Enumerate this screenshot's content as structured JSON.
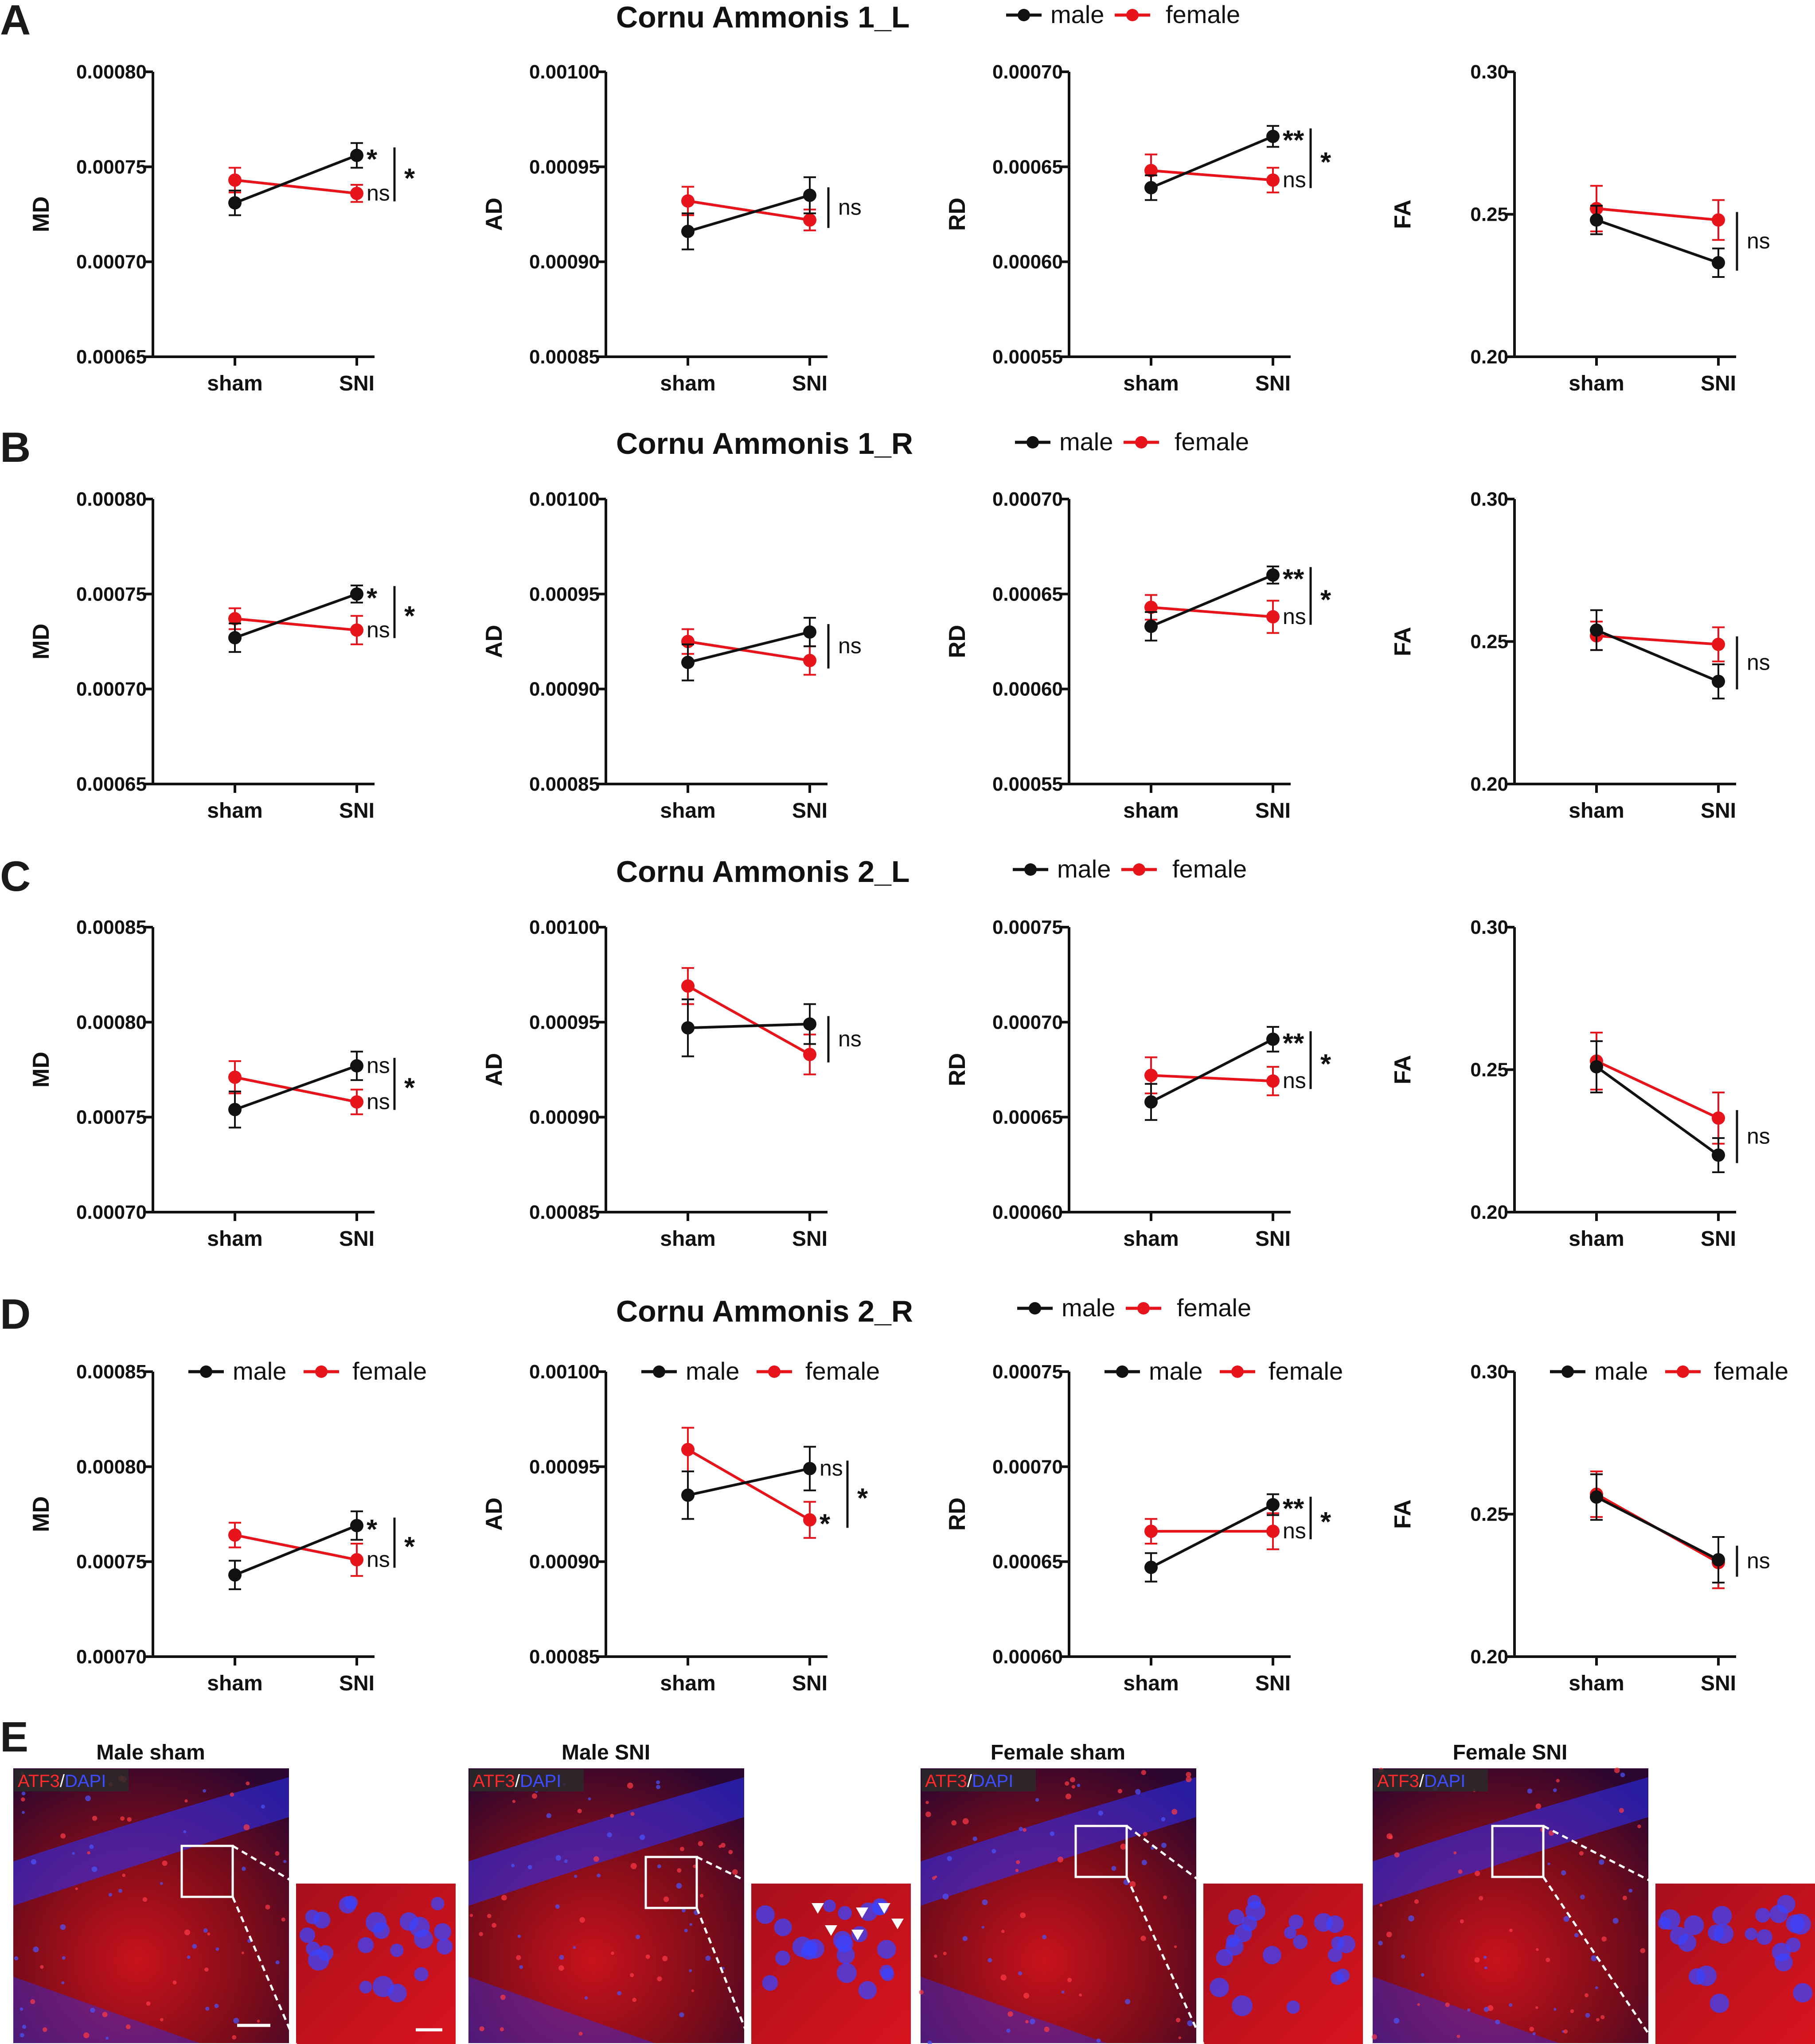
{
  "colors": {
    "male": "#111111",
    "female": "#e8141b",
    "axis": "#111111",
    "tissue_red": "#b1121a",
    "tissue_blue": "#2a30ff"
  },
  "legend_labels": {
    "male": "male",
    "female": "female"
  },
  "panels": [
    {
      "letter": "A",
      "title": "Cornu Ammonis 1_L"
    },
    {
      "letter": "B",
      "title": "Cornu Ammonis 1_R"
    },
    {
      "letter": "C",
      "title": "Cornu Ammonis 2_L"
    },
    {
      "letter": "D",
      "title": "Cornu Ammonis 2_R"
    },
    {
      "letter": "E",
      "title": ""
    }
  ],
  "chart_data": [
    {
      "id": "A-MD",
      "row": 0,
      "col": 0,
      "type": "line",
      "ylabel": "MD",
      "categories": [
        "sham",
        "SNI"
      ],
      "ylim": [
        0.00065,
        0.0008
      ],
      "ticks": [
        "0.00065",
        "0.00070",
        "0.00075",
        "0.00080"
      ],
      "series": [
        {
          "name": "male",
          "values": [
            0.000731,
            0.000756
          ],
          "err": [
            6.5e-06,
            6.5e-06
          ]
        },
        {
          "name": "female",
          "values": [
            0.000743,
            0.000736
          ],
          "err": [
            6.5e-06,
            4.5e-06
          ]
        }
      ],
      "sig": {
        "male": "*",
        "female": "ns",
        "between": "*"
      },
      "legend": false
    },
    {
      "id": "A-AD",
      "row": 0,
      "col": 1,
      "type": "line",
      "ylabel": "AD",
      "categories": [
        "sham",
        "SNI"
      ],
      "ylim": [
        0.00085,
        0.001
      ],
      "ticks": [
        "0.00085",
        "0.00090",
        "0.00095",
        "0.00100"
      ],
      "series": [
        {
          "name": "male",
          "values": [
            0.000916,
            0.000935
          ],
          "err": [
            9.5e-06,
            9.5e-06
          ]
        },
        {
          "name": "female",
          "values": [
            0.000932,
            0.000922
          ],
          "err": [
            7.5e-06,
            5.5e-06
          ]
        }
      ],
      "sig": {
        "male": "",
        "female": "",
        "between": "ns"
      },
      "legend": false
    },
    {
      "id": "A-RD",
      "row": 0,
      "col": 2,
      "type": "line",
      "ylabel": "RD",
      "categories": [
        "sham",
        "SNI"
      ],
      "ylim": [
        0.00055,
        0.0007
      ],
      "ticks": [
        "0.00055",
        "0.00060",
        "0.00065",
        "0.00070"
      ],
      "series": [
        {
          "name": "male",
          "values": [
            0.000639,
            0.000666
          ],
          "err": [
            6.5e-06,
            5.5e-06
          ]
        },
        {
          "name": "female",
          "values": [
            0.000648,
            0.000643
          ],
          "err": [
            8.5e-06,
            6.5e-06
          ]
        }
      ],
      "sig": {
        "male": "**",
        "female": "ns",
        "between": "*"
      },
      "legend": false
    },
    {
      "id": "A-FA",
      "row": 0,
      "col": 3,
      "type": "line",
      "ylabel": "FA",
      "categories": [
        "sham",
        "SNI"
      ],
      "ylim": [
        0.2,
        0.3
      ],
      "ticks": [
        "0.20",
        "0.25",
        "0.30"
      ],
      "series": [
        {
          "name": "male",
          "values": [
            0.248,
            0.233
          ],
          "err": [
            0.005,
            0.005
          ]
        },
        {
          "name": "female",
          "values": [
            0.252,
            0.248
          ],
          "err": [
            0.008,
            0.007
          ]
        }
      ],
      "sig": {
        "male": "",
        "female": "",
        "between": "ns"
      },
      "legend": false
    },
    {
      "id": "B-MD",
      "row": 1,
      "col": 0,
      "type": "line",
      "ylabel": "MD",
      "categories": [
        "sham",
        "SNI"
      ],
      "ylim": [
        0.00065,
        0.0008
      ],
      "ticks": [
        "0.00065",
        "0.00070",
        "0.00075",
        "0.00080"
      ],
      "series": [
        {
          "name": "male",
          "values": [
            0.000727,
            0.00075
          ],
          "err": [
            7.5e-06,
            4.5e-06
          ]
        },
        {
          "name": "female",
          "values": [
            0.000737,
            0.000731
          ],
          "err": [
            5.5e-06,
            7.5e-06
          ]
        }
      ],
      "sig": {
        "male": "*",
        "female": "ns",
        "between": "*"
      },
      "legend": false
    },
    {
      "id": "B-AD",
      "row": 1,
      "col": 1,
      "type": "line",
      "ylabel": "AD",
      "categories": [
        "sham",
        "SNI"
      ],
      "ylim": [
        0.00085,
        0.001
      ],
      "ticks": [
        "0.00085",
        "0.00090",
        "0.00095",
        "0.00100"
      ],
      "series": [
        {
          "name": "male",
          "values": [
            0.000914,
            0.00093
          ],
          "err": [
            9.5e-06,
            7.5e-06
          ]
        },
        {
          "name": "female",
          "values": [
            0.000925,
            0.000915
          ],
          "err": [
            6.5e-06,
            7.5e-06
          ]
        }
      ],
      "sig": {
        "male": "",
        "female": "",
        "between": "ns"
      },
      "legend": false
    },
    {
      "id": "B-RD",
      "row": 1,
      "col": 2,
      "type": "line",
      "ylabel": "RD",
      "categories": [
        "sham",
        "SNI"
      ],
      "ylim": [
        0.00055,
        0.0007
      ],
      "ticks": [
        "0.00055",
        "0.00060",
        "0.00065",
        "0.00070"
      ],
      "series": [
        {
          "name": "male",
          "values": [
            0.000633,
            0.00066
          ],
          "err": [
            7.5e-06,
            4.5e-06
          ]
        },
        {
          "name": "female",
          "values": [
            0.000643,
            0.000638
          ],
          "err": [
            6.5e-06,
            8.5e-06
          ]
        }
      ],
      "sig": {
        "male": "**",
        "female": "ns",
        "between": "*"
      },
      "legend": false
    },
    {
      "id": "B-FA",
      "row": 1,
      "col": 3,
      "type": "line",
      "ylabel": "FA",
      "categories": [
        "sham",
        "SNI"
      ],
      "ylim": [
        0.2,
        0.3
      ],
      "ticks": [
        "0.20",
        "0.25",
        "0.30"
      ],
      "series": [
        {
          "name": "male",
          "values": [
            0.254,
            0.236
          ],
          "err": [
            0.007,
            0.006
          ]
        },
        {
          "name": "female",
          "values": [
            0.252,
            0.249
          ],
          "err": [
            0.005,
            0.006
          ]
        }
      ],
      "sig": {
        "male": "",
        "female": "",
        "between": "ns"
      },
      "legend": false
    },
    {
      "id": "C-MD",
      "row": 2,
      "col": 0,
      "type": "line",
      "ylabel": "MD",
      "categories": [
        "sham",
        "SNI"
      ],
      "ylim": [
        0.0007,
        0.00085
      ],
      "ticks": [
        "0.00070",
        "0.00075",
        "0.00080",
        "0.00085"
      ],
      "series": [
        {
          "name": "male",
          "values": [
            0.000754,
            0.000777
          ],
          "err": [
            9.5e-06,
            7.5e-06
          ]
        },
        {
          "name": "female",
          "values": [
            0.000771,
            0.000758
          ],
          "err": [
            8.5e-06,
            6.5e-06
          ]
        }
      ],
      "sig": {
        "male": "ns",
        "female": "ns",
        "between": "*"
      },
      "legend": false
    },
    {
      "id": "C-AD",
      "row": 2,
      "col": 1,
      "type": "line",
      "ylabel": "AD",
      "categories": [
        "sham",
        "SNI"
      ],
      "ylim": [
        0.00085,
        0.001
      ],
      "ticks": [
        "0.00085",
        "0.00090",
        "0.00095",
        "0.00100"
      ],
      "series": [
        {
          "name": "male",
          "values": [
            0.000947,
            0.000949
          ],
          "err": [
            1.5e-05,
            1.05e-05
          ]
        },
        {
          "name": "female",
          "values": [
            0.000969,
            0.000933
          ],
          "err": [
            9.5e-06,
            1.05e-05
          ]
        }
      ],
      "sig": {
        "male": "",
        "female": "",
        "between": "ns"
      },
      "legend": false
    },
    {
      "id": "C-RD",
      "row": 2,
      "col": 2,
      "type": "line",
      "ylabel": "RD",
      "categories": [
        "sham",
        "SNI"
      ],
      "ylim": [
        0.0006,
        0.00075
      ],
      "ticks": [
        "0.00060",
        "0.00065",
        "0.00070",
        "0.00075"
      ],
      "series": [
        {
          "name": "male",
          "values": [
            0.000658,
            0.000691
          ],
          "err": [
            9.5e-06,
            6.5e-06
          ]
        },
        {
          "name": "female",
          "values": [
            0.000672,
            0.000669
          ],
          "err": [
            9.5e-06,
            7.5e-06
          ]
        }
      ],
      "sig": {
        "male": "**",
        "female": "ns",
        "between": "*"
      },
      "legend": false
    },
    {
      "id": "C-FA",
      "row": 2,
      "col": 3,
      "type": "line",
      "ylabel": "FA",
      "categories": [
        "sham",
        "SNI"
      ],
      "ylim": [
        0.2,
        0.3
      ],
      "ticks": [
        "0.20",
        "0.25",
        "0.30"
      ],
      "series": [
        {
          "name": "male",
          "values": [
            0.251,
            0.22
          ],
          "err": [
            0.009,
            0.006
          ]
        },
        {
          "name": "female",
          "values": [
            0.253,
            0.233
          ],
          "err": [
            0.01,
            0.009
          ]
        }
      ],
      "sig": {
        "male": "",
        "female": "",
        "between": "ns"
      },
      "legend": false
    },
    {
      "id": "D-MD",
      "row": 3,
      "col": 0,
      "type": "line",
      "ylabel": "MD",
      "categories": [
        "sham",
        "SNI"
      ],
      "ylim": [
        0.0007,
        0.00085
      ],
      "ticks": [
        "0.00070",
        "0.00075",
        "0.00080",
        "0.00085"
      ],
      "series": [
        {
          "name": "male",
          "values": [
            0.000743,
            0.000769
          ],
          "err": [
            7.5e-06,
            7.5e-06
          ]
        },
        {
          "name": "female",
          "values": [
            0.000764,
            0.000751
          ],
          "err": [
            6.5e-06,
            8.5e-06
          ]
        }
      ],
      "sig": {
        "male": "*",
        "female": "ns",
        "between": "*"
      },
      "legend": true
    },
    {
      "id": "D-AD",
      "row": 3,
      "col": 1,
      "type": "line",
      "ylabel": "AD",
      "categories": [
        "sham",
        "SNI"
      ],
      "ylim": [
        0.00085,
        0.001
      ],
      "ticks": [
        "0.00085",
        "0.00090",
        "0.00095",
        "0.00100"
      ],
      "series": [
        {
          "name": "male",
          "values": [
            0.000935,
            0.000949
          ],
          "err": [
            1.25e-05,
            1.15e-05
          ]
        },
        {
          "name": "female",
          "values": [
            0.000959,
            0.000922
          ],
          "err": [
            1.15e-05,
            9.5e-06
          ]
        }
      ],
      "sig": {
        "male": "ns",
        "female": "*",
        "between": "*"
      },
      "legend": true
    },
    {
      "id": "D-RD",
      "row": 3,
      "col": 2,
      "type": "line",
      "ylabel": "RD",
      "categories": [
        "sham",
        "SNI"
      ],
      "ylim": [
        0.0006,
        0.00075
      ],
      "ticks": [
        "0.00060",
        "0.00065",
        "0.00070",
        "0.00075"
      ],
      "series": [
        {
          "name": "male",
          "values": [
            0.000647,
            0.00068
          ],
          "err": [
            7.5e-06,
            5.5e-06
          ]
        },
        {
          "name": "female",
          "values": [
            0.000666,
            0.000666
          ],
          "err": [
            6.5e-06,
            9.5e-06
          ]
        }
      ],
      "sig": {
        "male": "**",
        "female": "ns",
        "between": "*"
      },
      "legend": true
    },
    {
      "id": "D-FA",
      "row": 3,
      "col": 3,
      "type": "line",
      "ylabel": "FA",
      "categories": [
        "sham",
        "SNI"
      ],
      "ylim": [
        0.2,
        0.3
      ],
      "ticks": [
        "0.20",
        "0.25",
        "0.30"
      ],
      "series": [
        {
          "name": "male",
          "values": [
            0.256,
            0.234
          ],
          "err": [
            0.008,
            0.008
          ]
        },
        {
          "name": "female",
          "values": [
            0.257,
            0.233
          ],
          "err": [
            0.008,
            0.009
          ]
        }
      ],
      "sig": {
        "male": "",
        "female": "",
        "between": "ns"
      },
      "legend": true
    }
  ],
  "micrographs": [
    {
      "title": "Male sham",
      "stain_a": "ATF3",
      "slash": "/",
      "stain_b": "DAPI"
    },
    {
      "title": "Male SNI",
      "stain_a": "ATF3",
      "slash": "/",
      "stain_b": "DAPI"
    },
    {
      "title": "Female sham",
      "stain_a": "ATF3",
      "slash": "/",
      "stain_b": "DAPI"
    },
    {
      "title": "Female SNI",
      "stain_a": "ATF3",
      "slash": "/",
      "stain_b": "DAPI"
    }
  ]
}
